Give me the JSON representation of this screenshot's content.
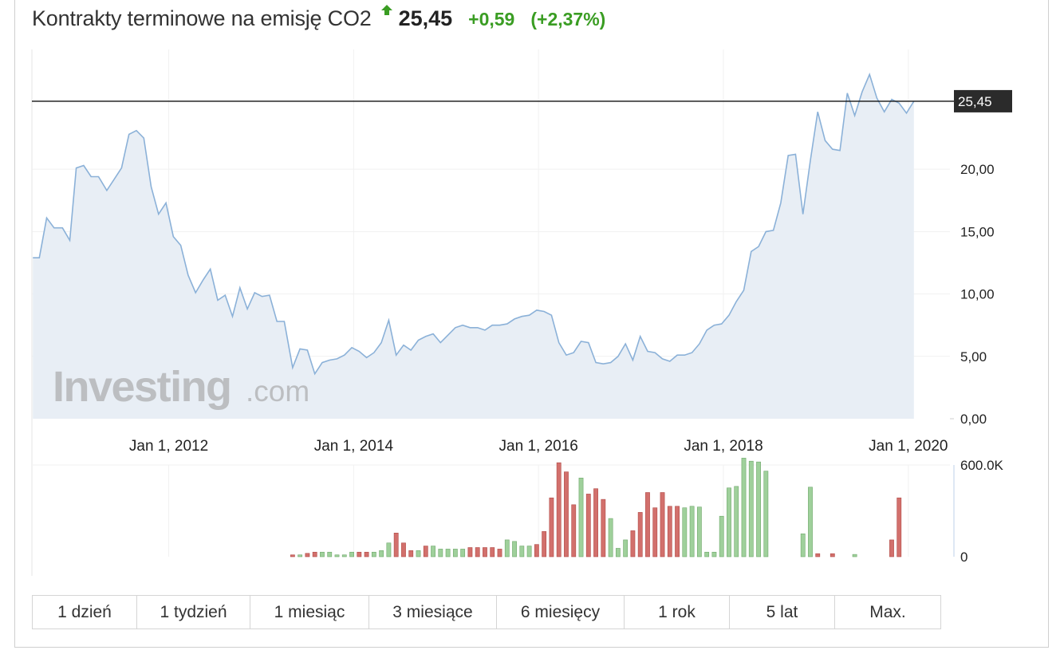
{
  "header": {
    "title": "Kontrakty terminowe na emisję CO2",
    "price": "25,45",
    "change": "+0,59",
    "change_pct": "(+2,37%)",
    "direction_icon": "up-arrow-icon",
    "up_color": "#3a9d23"
  },
  "watermark": {
    "brand": "Investing",
    "suffix": ".com"
  },
  "tabs": [
    {
      "label": "1 dzień"
    },
    {
      "label": "1 tydzień"
    },
    {
      "label": "1 miesiąc"
    },
    {
      "label": "3 miesiące"
    },
    {
      "label": "6 miesięcy"
    },
    {
      "label": "1 rok"
    },
    {
      "label": "5 lat"
    },
    {
      "label": "Max."
    }
  ],
  "chart_data": {
    "type": "area",
    "line_color": "#8bb1d8",
    "fill_color": "#e8eef5",
    "x_ticks": [
      {
        "label": "Jan 1, 2012",
        "t": 2012.0
      },
      {
        "label": "Jan 1, 2014",
        "t": 2014.0
      },
      {
        "label": "Jan 1, 2016",
        "t": 2016.0
      },
      {
        "label": "Jan 1, 2018",
        "t": 2018.0
      },
      {
        "label": "Jan 1, 2020",
        "t": 2020.0
      }
    ],
    "y_ticks": [
      {
        "label": "0,00",
        "v": 0
      },
      {
        "label": "5,00",
        "v": 5
      },
      {
        "label": "10,00",
        "v": 10
      },
      {
        "label": "15,00",
        "v": 15
      },
      {
        "label": "20,00",
        "v": 20
      }
    ],
    "xlim": [
      2010.52,
      2020.45
    ],
    "ylim": [
      0,
      29.6
    ],
    "last_value": 25.45,
    "last_label": "25,45",
    "price": [
      [
        2010.53,
        12.9
      ],
      [
        2010.6,
        12.9
      ],
      [
        2010.68,
        16.1
      ],
      [
        2010.76,
        15.3
      ],
      [
        2010.85,
        15.3
      ],
      [
        2010.93,
        14.3
      ],
      [
        2011.0,
        20.1
      ],
      [
        2011.08,
        20.3
      ],
      [
        2011.16,
        19.4
      ],
      [
        2011.24,
        19.4
      ],
      [
        2011.33,
        18.3
      ],
      [
        2011.41,
        19.2
      ],
      [
        2011.49,
        20.1
      ],
      [
        2011.57,
        22.8
      ],
      [
        2011.65,
        23.1
      ],
      [
        2011.73,
        22.5
      ],
      [
        2011.81,
        18.6
      ],
      [
        2011.89,
        16.4
      ],
      [
        2011.97,
        17.3
      ],
      [
        2012.05,
        14.6
      ],
      [
        2012.13,
        13.9
      ],
      [
        2012.21,
        11.5
      ],
      [
        2012.29,
        10.1
      ],
      [
        2012.37,
        11.1
      ],
      [
        2012.45,
        12.0
      ],
      [
        2012.53,
        9.5
      ],
      [
        2012.61,
        9.9
      ],
      [
        2012.69,
        8.2
      ],
      [
        2012.77,
        10.5
      ],
      [
        2012.85,
        8.8
      ],
      [
        2012.93,
        10.1
      ],
      [
        2013.01,
        9.8
      ],
      [
        2013.09,
        9.9
      ],
      [
        2013.17,
        7.8
      ],
      [
        2013.25,
        7.8
      ],
      [
        2013.34,
        4.1
      ],
      [
        2013.42,
        5.6
      ],
      [
        2013.5,
        5.5
      ],
      [
        2013.58,
        3.6
      ],
      [
        2013.66,
        4.5
      ],
      [
        2013.74,
        4.7
      ],
      [
        2013.82,
        4.8
      ],
      [
        2013.9,
        5.1
      ],
      [
        2013.98,
        5.7
      ],
      [
        2014.06,
        5.4
      ],
      [
        2014.14,
        4.9
      ],
      [
        2014.22,
        5.3
      ],
      [
        2014.3,
        6.1
      ],
      [
        2014.38,
        7.9
      ],
      [
        2014.46,
        5.1
      ],
      [
        2014.54,
        5.9
      ],
      [
        2014.62,
        5.5
      ],
      [
        2014.7,
        6.3
      ],
      [
        2014.78,
        6.6
      ],
      [
        2014.86,
        6.8
      ],
      [
        2014.94,
        6.1
      ],
      [
        2015.02,
        6.7
      ],
      [
        2015.1,
        7.3
      ],
      [
        2015.18,
        7.5
      ],
      [
        2015.26,
        7.3
      ],
      [
        2015.34,
        7.3
      ],
      [
        2015.42,
        7.1
      ],
      [
        2015.5,
        7.5
      ],
      [
        2015.58,
        7.5
      ],
      [
        2015.66,
        7.6
      ],
      [
        2015.74,
        8.0
      ],
      [
        2015.82,
        8.2
      ],
      [
        2015.9,
        8.3
      ],
      [
        2015.98,
        8.7
      ],
      [
        2016.06,
        8.6
      ],
      [
        2016.14,
        8.3
      ],
      [
        2016.22,
        6.1
      ],
      [
        2016.3,
        5.1
      ],
      [
        2016.38,
        5.3
      ],
      [
        2016.46,
        6.2
      ],
      [
        2016.54,
        6.1
      ],
      [
        2016.62,
        4.5
      ],
      [
        2016.7,
        4.4
      ],
      [
        2016.78,
        4.5
      ],
      [
        2016.86,
        5.0
      ],
      [
        2016.94,
        6.0
      ],
      [
        2017.02,
        4.7
      ],
      [
        2017.1,
        6.6
      ],
      [
        2017.18,
        5.4
      ],
      [
        2017.26,
        5.3
      ],
      [
        2017.34,
        4.8
      ],
      [
        2017.42,
        4.6
      ],
      [
        2017.5,
        5.1
      ],
      [
        2017.58,
        5.1
      ],
      [
        2017.66,
        5.3
      ],
      [
        2017.74,
        6.0
      ],
      [
        2017.82,
        7.1
      ],
      [
        2017.9,
        7.5
      ],
      [
        2017.98,
        7.6
      ],
      [
        2018.06,
        8.3
      ],
      [
        2018.14,
        9.4
      ],
      [
        2018.22,
        10.3
      ],
      [
        2018.3,
        13.4
      ],
      [
        2018.38,
        13.8
      ],
      [
        2018.46,
        15.0
      ],
      [
        2018.54,
        15.1
      ],
      [
        2018.62,
        17.3
      ],
      [
        2018.7,
        21.1
      ],
      [
        2018.78,
        21.2
      ],
      [
        2018.86,
        16.4
      ],
      [
        2018.94,
        20.7
      ],
      [
        2019.02,
        24.6
      ],
      [
        2019.1,
        22.3
      ],
      [
        2019.18,
        21.6
      ],
      [
        2019.26,
        21.5
      ],
      [
        2019.34,
        26.1
      ],
      [
        2019.42,
        24.3
      ],
      [
        2019.5,
        26.2
      ],
      [
        2019.58,
        27.6
      ],
      [
        2019.66,
        25.7
      ],
      [
        2019.74,
        24.6
      ],
      [
        2019.82,
        25.6
      ],
      [
        2019.9,
        25.3
      ],
      [
        2019.98,
        24.5
      ],
      [
        2020.06,
        25.45
      ]
    ],
    "volume": {
      "ticks": [
        {
          "label": "600.0K",
          "v": 600000
        },
        {
          "label": "0",
          "v": 0
        }
      ],
      "ylim": [
        0,
        600000
      ],
      "up_color": "#9fd09b",
      "down_color": "#d2706c",
      "bars": [
        {
          "t": 2013.34,
          "v": 12000,
          "d": "down"
        },
        {
          "t": 2013.42,
          "v": 12000,
          "d": "up"
        },
        {
          "t": 2013.5,
          "v": 22000,
          "d": "down"
        },
        {
          "t": 2013.58,
          "v": 30000,
          "d": "down"
        },
        {
          "t": 2013.66,
          "v": 30000,
          "d": "up"
        },
        {
          "t": 2013.74,
          "v": 30000,
          "d": "up"
        },
        {
          "t": 2013.82,
          "v": 12000,
          "d": "up"
        },
        {
          "t": 2013.9,
          "v": 12000,
          "d": "up"
        },
        {
          "t": 2013.98,
          "v": 30000,
          "d": "up"
        },
        {
          "t": 2014.06,
          "v": 30000,
          "d": "down"
        },
        {
          "t": 2014.14,
          "v": 30000,
          "d": "down"
        },
        {
          "t": 2014.22,
          "v": 30000,
          "d": "up"
        },
        {
          "t": 2014.3,
          "v": 40000,
          "d": "up"
        },
        {
          "t": 2014.38,
          "v": 90000,
          "d": "up"
        },
        {
          "t": 2014.46,
          "v": 155000,
          "d": "down"
        },
        {
          "t": 2014.54,
          "v": 90000,
          "d": "down"
        },
        {
          "t": 2014.62,
          "v": 40000,
          "d": "down"
        },
        {
          "t": 2014.7,
          "v": 40000,
          "d": "up"
        },
        {
          "t": 2014.78,
          "v": 70000,
          "d": "down"
        },
        {
          "t": 2014.86,
          "v": 70000,
          "d": "up"
        },
        {
          "t": 2014.94,
          "v": 50000,
          "d": "up"
        },
        {
          "t": 2015.02,
          "v": 50000,
          "d": "up"
        },
        {
          "t": 2015.1,
          "v": 50000,
          "d": "up"
        },
        {
          "t": 2015.18,
          "v": 50000,
          "d": "up"
        },
        {
          "t": 2015.26,
          "v": 60000,
          "d": "down"
        },
        {
          "t": 2015.34,
          "v": 60000,
          "d": "down"
        },
        {
          "t": 2015.42,
          "v": 60000,
          "d": "down"
        },
        {
          "t": 2015.5,
          "v": 60000,
          "d": "down"
        },
        {
          "t": 2015.58,
          "v": 50000,
          "d": "down"
        },
        {
          "t": 2015.66,
          "v": 110000,
          "d": "up"
        },
        {
          "t": 2015.74,
          "v": 100000,
          "d": "up"
        },
        {
          "t": 2015.82,
          "v": 70000,
          "d": "up"
        },
        {
          "t": 2015.9,
          "v": 70000,
          "d": "up"
        },
        {
          "t": 2015.98,
          "v": 80000,
          "d": "down"
        },
        {
          "t": 2016.06,
          "v": 165000,
          "d": "down"
        },
        {
          "t": 2016.14,
          "v": 385000,
          "d": "down"
        },
        {
          "t": 2016.22,
          "v": 615000,
          "d": "down"
        },
        {
          "t": 2016.3,
          "v": 555000,
          "d": "down"
        },
        {
          "t": 2016.38,
          "v": 340000,
          "d": "down"
        },
        {
          "t": 2016.46,
          "v": 515000,
          "d": "up"
        },
        {
          "t": 2016.54,
          "v": 410000,
          "d": "down"
        },
        {
          "t": 2016.62,
          "v": 445000,
          "d": "down"
        },
        {
          "t": 2016.7,
          "v": 375000,
          "d": "down"
        },
        {
          "t": 2016.78,
          "v": 250000,
          "d": "up"
        },
        {
          "t": 2016.86,
          "v": 55000,
          "d": "up"
        },
        {
          "t": 2016.94,
          "v": 110000,
          "d": "up"
        },
        {
          "t": 2017.02,
          "v": 170000,
          "d": "down"
        },
        {
          "t": 2017.1,
          "v": 290000,
          "d": "down"
        },
        {
          "t": 2017.18,
          "v": 420000,
          "d": "down"
        },
        {
          "t": 2017.26,
          "v": 320000,
          "d": "down"
        },
        {
          "t": 2017.34,
          "v": 420000,
          "d": "down"
        },
        {
          "t": 2017.42,
          "v": 330000,
          "d": "down"
        },
        {
          "t": 2017.5,
          "v": 330000,
          "d": "down"
        },
        {
          "t": 2017.58,
          "v": 320000,
          "d": "up"
        },
        {
          "t": 2017.66,
          "v": 330000,
          "d": "up"
        },
        {
          "t": 2017.74,
          "v": 325000,
          "d": "up"
        },
        {
          "t": 2017.82,
          "v": 30000,
          "d": "up"
        },
        {
          "t": 2017.9,
          "v": 30000,
          "d": "up"
        },
        {
          "t": 2017.98,
          "v": 265000,
          "d": "up"
        },
        {
          "t": 2018.06,
          "v": 450000,
          "d": "up"
        },
        {
          "t": 2018.14,
          "v": 460000,
          "d": "up"
        },
        {
          "t": 2018.22,
          "v": 645000,
          "d": "up"
        },
        {
          "t": 2018.3,
          "v": 625000,
          "d": "up"
        },
        {
          "t": 2018.38,
          "v": 620000,
          "d": "up"
        },
        {
          "t": 2018.46,
          "v": 560000,
          "d": "up"
        },
        {
          "t": 2018.86,
          "v": 150000,
          "d": "up"
        },
        {
          "t": 2018.94,
          "v": 455000,
          "d": "up"
        },
        {
          "t": 2019.02,
          "v": 20000,
          "d": "down"
        },
        {
          "t": 2019.18,
          "v": 20000,
          "d": "down"
        },
        {
          "t": 2019.42,
          "v": 15000,
          "d": "up"
        },
        {
          "t": 2019.82,
          "v": 110000,
          "d": "down"
        },
        {
          "t": 2019.9,
          "v": 385000,
          "d": "down"
        }
      ]
    }
  }
}
